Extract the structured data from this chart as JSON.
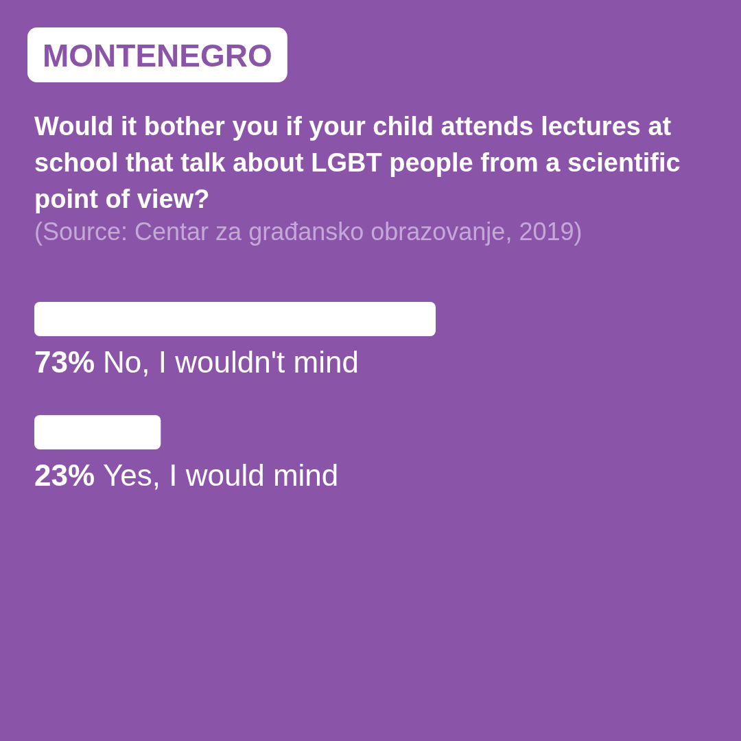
{
  "chart_data": {
    "type": "bar",
    "orientation": "horizontal",
    "title": "MONTENEGRO",
    "subtitle": "Would it bother you if your child attends lectures at school that talk about LGBT people from a scientific point of view?",
    "annotations": [
      "(Source: Centar za građansko obrazovanje, 2019)"
    ],
    "categories": [
      "No, I wouldn't mind",
      "Yes, I would mind"
    ],
    "values": [
      73,
      23
    ],
    "value_labels": [
      "73%",
      "23%"
    ],
    "color": "#ffffff"
  }
}
